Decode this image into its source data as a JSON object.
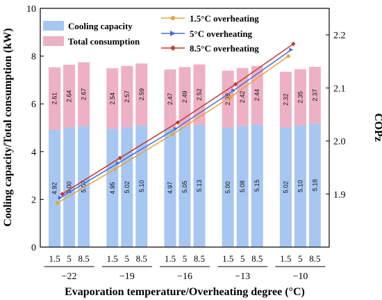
{
  "chart_data": {
    "type": "bar",
    "xlabel": "Evaporation temperature/Overheating degree (°C)",
    "ylabel_left": "Cooling capacity/Total consumption (kW)",
    "ylabel_right": "COPz",
    "ylim_left": [
      0,
      10
    ],
    "ylim_right": [
      1.8,
      2.25
    ],
    "yticks_left": [
      "0",
      "2",
      "4",
      "6",
      "8",
      "10"
    ],
    "yticks_right": [
      "1.9",
      "2.0",
      "2.1",
      "2.2"
    ],
    "groups": [
      "-22",
      "-19",
      "-16",
      "-13",
      "-10"
    ],
    "sub_categories": [
      "1.5",
      "5",
      "8.5"
    ],
    "colors": {
      "cooling": "#a7c7f2",
      "consumption": "#eeb0c4",
      "line_1_5": "#e8a33a",
      "line_5": "#4a6fd8",
      "line_8_5": "#c03a35"
    },
    "bar_series": [
      {
        "name": "Cooling capacity",
        "values": [
          4.92,
          5.0,
          5.07,
          4.95,
          5.02,
          5.1,
          4.97,
          5.05,
          5.13,
          5.0,
          5.08,
          5.15,
          5.02,
          5.1,
          5.18
        ],
        "labels": [
          "4.92",
          "5.00",
          "5.07",
          "4.95",
          "5.02",
          "5.10",
          "4.97",
          "5.05",
          "5.13",
          "5.00",
          "5.08",
          "5.15",
          "5.02",
          "5.10",
          "5.18"
        ]
      },
      {
        "name": "Total consumption",
        "values": [
          2.61,
          2.64,
          2.67,
          2.54,
          2.57,
          2.59,
          2.47,
          2.49,
          2.52,
          2.39,
          2.42,
          2.44,
          2.32,
          2.35,
          2.37
        ],
        "labels": [
          "2.61",
          "2.64",
          "2.67",
          "2.54",
          "2.57",
          "2.59",
          "2.47",
          "2.49",
          "2.52",
          "2.39",
          "2.42",
          "2.44",
          "2.32",
          "2.35",
          "2.37"
        ]
      }
    ],
    "line_series": [
      {
        "name": "1.5°C overheating",
        "x": [
          "-22",
          "-19",
          "-16",
          "-13",
          "-10"
        ],
        "values": [
          1.883,
          1.947,
          2.013,
          2.083,
          2.16
        ]
      },
      {
        "name": "5°C overheating",
        "x": [
          "-22",
          "-19",
          "-16",
          "-13",
          "-10"
        ],
        "values": [
          1.893,
          1.958,
          2.023,
          2.095,
          2.172
        ]
      },
      {
        "name": "8.5°C overheating",
        "x": [
          "-22",
          "-19",
          "-16",
          "-13",
          "-10"
        ],
        "values": [
          1.9,
          1.968,
          2.035,
          2.107,
          2.183
        ]
      }
    ]
  }
}
